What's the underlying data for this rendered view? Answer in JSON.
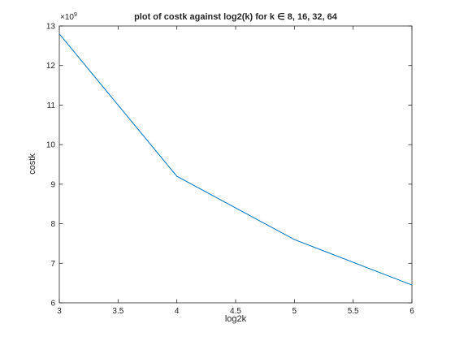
{
  "chart_data": {
    "type": "line",
    "title": "plot of costk against log2(k) for k ∈ 8, 16, 32, 64",
    "xlabel": "log2k",
    "ylabel": "costk",
    "y_exponent_label": "×10",
    "y_exponent": "9",
    "xlim": [
      3,
      6
    ],
    "ylim": [
      6,
      13
    ],
    "x_ticks": [
      3,
      3.5,
      4,
      4.5,
      5,
      5.5,
      6
    ],
    "x_tick_labels": [
      "3",
      "3.5",
      "4",
      "4.5",
      "5",
      "5.5",
      "6"
    ],
    "y_ticks": [
      6,
      7,
      8,
      9,
      10,
      11,
      12,
      13
    ],
    "y_tick_labels": [
      "6",
      "7",
      "8",
      "9",
      "10",
      "11",
      "12",
      "13"
    ],
    "grid": false,
    "series": [
      {
        "x": [
          3,
          4,
          5,
          6
        ],
        "y": [
          12.8,
          9.2,
          7.6,
          6.45
        ],
        "color": "#0072bd"
      }
    ]
  }
}
